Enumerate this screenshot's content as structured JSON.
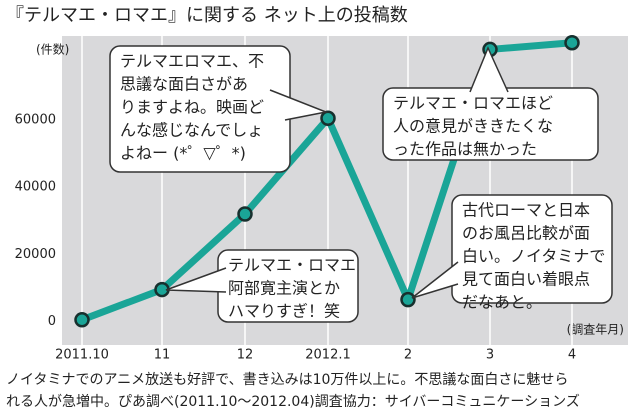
{
  "chart_data": {
    "type": "line",
    "title": "『テルマエ・ロマエ』に関する ネット上の投稿数",
    "ylabel": "(件数)",
    "xlabel": "(調査年月)",
    "categories": [
      "2011.10",
      "11",
      "12",
      "2012.1",
      "2",
      "3",
      "4"
    ],
    "values": [
      500,
      9500,
      32000,
      60500,
      6500,
      81000,
      83000
    ],
    "color": "#1aa597",
    "ylim": [
      -7000,
      85000
    ],
    "yticks": [
      0,
      20000,
      40000,
      60000
    ],
    "grid": true,
    "annotations": [
      {
        "lines": [
          "テルマエロマエ、不",
          "思議な面白さがあ",
          "りますよね。映画ど",
          "んな感じなんでしょ",
          "よねー (*゜▽゜*)"
        ]
      },
      {
        "lines": [
          "テルマエ・ロマエ",
          "阿部寛主演とか",
          "ハマりすぎ！笑"
        ]
      },
      {
        "lines": [
          "テルマエ・ロマエほど",
          "人の意見がききたくな",
          "った作品は無かった"
        ]
      },
      {
        "lines": [
          "古代ローマと日本",
          "のお風呂比較が面",
          "白い。ノイタミナで",
          "見て面白い着眼点",
          "だなあと。"
        ]
      }
    ],
    "note": [
      "ノイタミナでのアニメ放送も好評で、書き込みは10万件以上に。不思議な面白さに魅せら",
      "れる人が急増中。ぴあ調べ(2011.10～2012.04)調査協力：サイバーコミュニケーションズ"
    ]
  }
}
